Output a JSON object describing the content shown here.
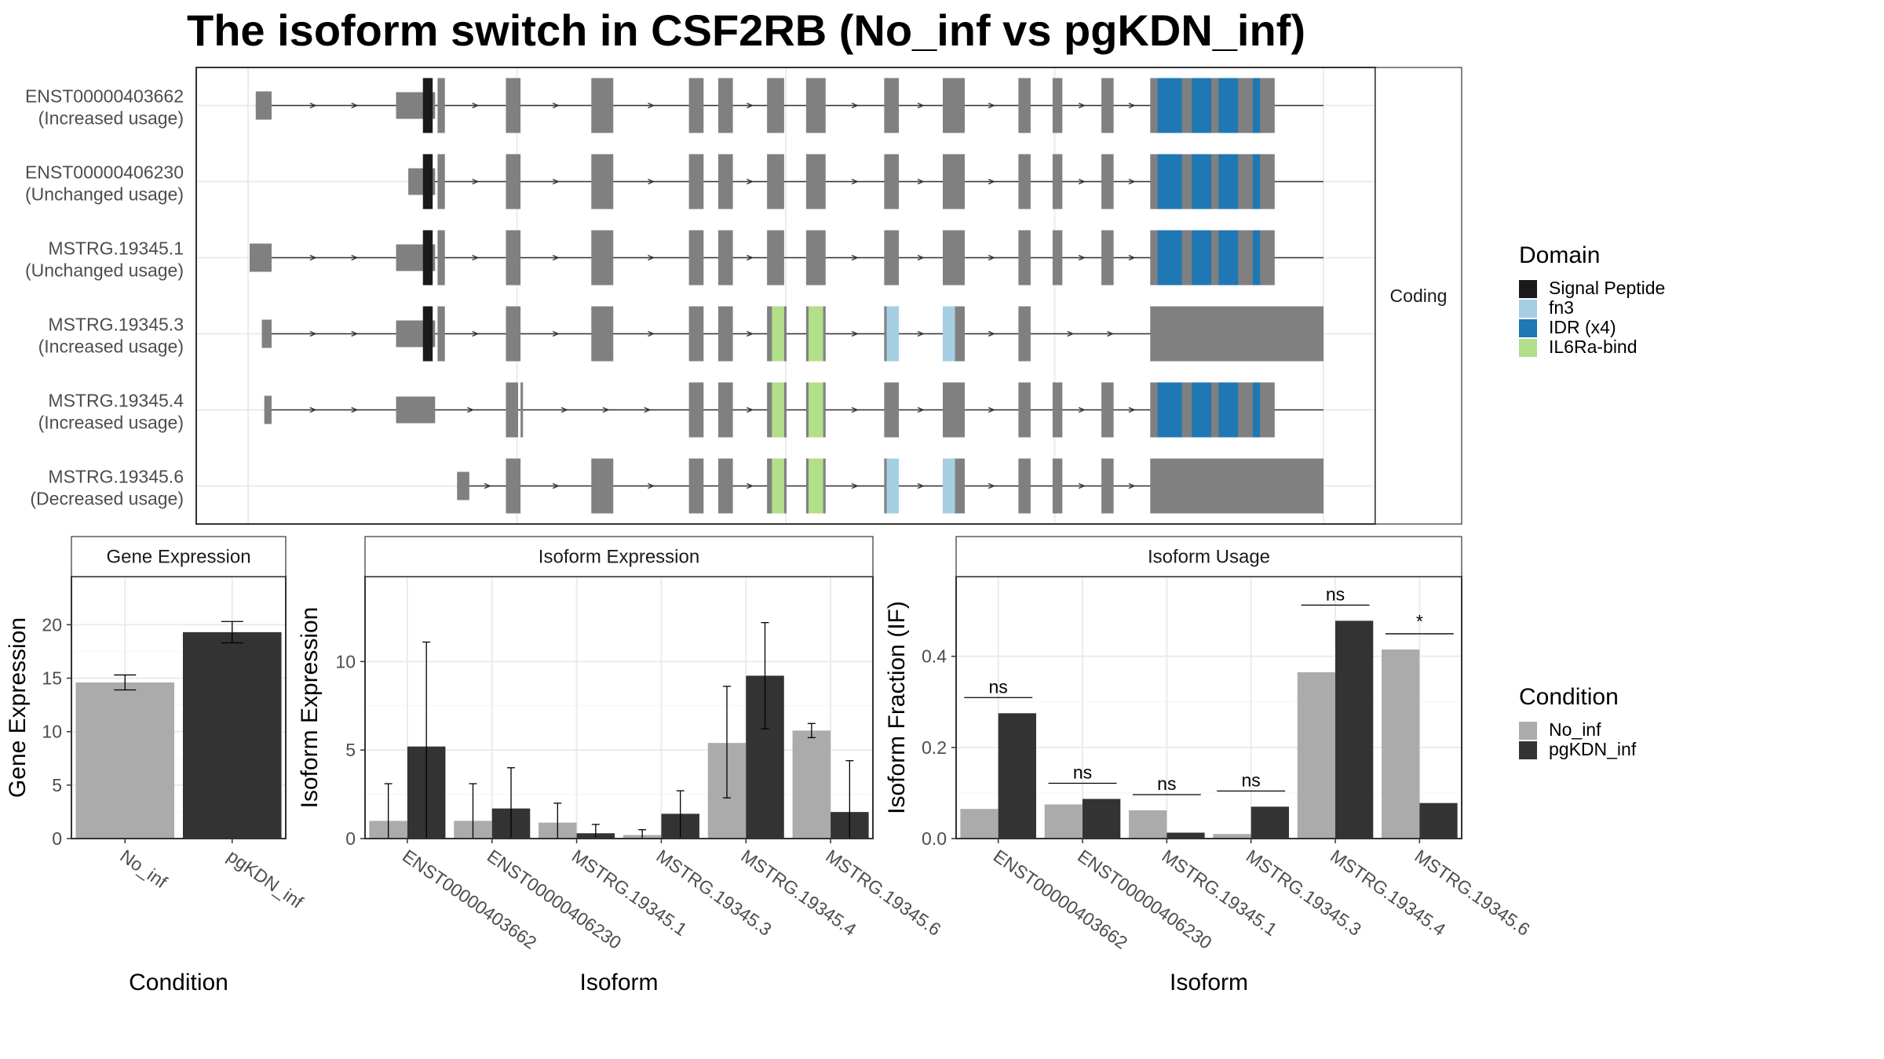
{
  "title": "The isoform switch in CSF2RB (No_inf vs pgKDN_inf)",
  "colors": {
    "exon": "#808080",
    "signal_peptide": "#1a1a1a",
    "fn3": "#a6cee3",
    "idr": "#1f78b4",
    "il6ra_bind": "#b2df8a",
    "no_inf": "#ababab",
    "pgkdn_inf": "#333333",
    "grid": "#ebebeb",
    "border": "#333333",
    "strip_border": "#333333"
  },
  "structure": {
    "strip_label": "Coding",
    "isoforms": [
      {
        "id": "ENST00000403662",
        "usage": "(Increased usage)",
        "start": 5,
        "end": 880,
        "exons": [
          [
            5,
            18
          ],
          [
            120,
            152
          ],
          [
            154,
            160
          ],
          [
            210,
            222
          ],
          [
            280,
            298
          ],
          [
            360,
            372
          ],
          [
            384,
            396
          ],
          [
            424,
            438
          ],
          [
            456,
            472
          ],
          [
            520,
            532
          ],
          [
            568,
            586
          ],
          [
            630,
            640
          ],
          [
            658,
            666
          ],
          [
            698,
            708
          ],
          [
            738,
            840
          ]
        ],
        "domains": [
          {
            "type": "signal_peptide",
            "s": 142,
            "e": 150
          },
          {
            "type": "idr",
            "s": 744,
            "e": 764
          },
          {
            "type": "idr",
            "s": 772,
            "e": 788
          },
          {
            "type": "idr",
            "s": 794,
            "e": 810
          },
          {
            "type": "idr",
            "s": 822,
            "e": 828
          }
        ]
      },
      {
        "id": "ENST00000406230",
        "usage": "(Unchanged usage)",
        "start": 130,
        "end": 880,
        "exons": [
          [
            130,
            152
          ],
          [
            154,
            160
          ],
          [
            210,
            222
          ],
          [
            280,
            298
          ],
          [
            360,
            372
          ],
          [
            384,
            396
          ],
          [
            424,
            438
          ],
          [
            456,
            472
          ],
          [
            520,
            532
          ],
          [
            568,
            586
          ],
          [
            630,
            640
          ],
          [
            658,
            666
          ],
          [
            698,
            708
          ],
          [
            738,
            840
          ]
        ],
        "domains": [
          {
            "type": "signal_peptide",
            "s": 142,
            "e": 150
          },
          {
            "type": "idr",
            "s": 744,
            "e": 764
          },
          {
            "type": "idr",
            "s": 772,
            "e": 788
          },
          {
            "type": "idr",
            "s": 794,
            "e": 810
          },
          {
            "type": "idr",
            "s": 822,
            "e": 828
          }
        ]
      },
      {
        "id": "MSTRG.19345.1",
        "usage": "(Unchanged usage)",
        "start": 0,
        "end": 880,
        "exons": [
          [
            0,
            18
          ],
          [
            120,
            152
          ],
          [
            154,
            160
          ],
          [
            210,
            222
          ],
          [
            280,
            298
          ],
          [
            360,
            372
          ],
          [
            384,
            396
          ],
          [
            424,
            438
          ],
          [
            456,
            472
          ],
          [
            520,
            532
          ],
          [
            568,
            586
          ],
          [
            630,
            640
          ],
          [
            658,
            666
          ],
          [
            698,
            708
          ],
          [
            738,
            840
          ]
        ],
        "domains": [
          {
            "type": "signal_peptide",
            "s": 142,
            "e": 150
          },
          {
            "type": "idr",
            "s": 744,
            "e": 764
          },
          {
            "type": "idr",
            "s": 772,
            "e": 788
          },
          {
            "type": "idr",
            "s": 794,
            "e": 810
          },
          {
            "type": "idr",
            "s": 822,
            "e": 828
          }
        ]
      },
      {
        "id": "MSTRG.19345.3",
        "usage": "(Increased usage)",
        "start": 10,
        "end": 880,
        "exons": [
          [
            10,
            18
          ],
          [
            120,
            152
          ],
          [
            154,
            160
          ],
          [
            210,
            222
          ],
          [
            280,
            298
          ],
          [
            360,
            372
          ],
          [
            384,
            396
          ],
          [
            424,
            440
          ],
          [
            456,
            472
          ],
          [
            520,
            532
          ],
          [
            568,
            586
          ],
          [
            630,
            640
          ],
          [
            738,
            880
          ]
        ],
        "domains": [
          {
            "type": "signal_peptide",
            "s": 142,
            "e": 150
          },
          {
            "type": "il6ra_bind",
            "s": 428,
            "e": 438
          },
          {
            "type": "il6ra_bind",
            "s": 458,
            "e": 470
          },
          {
            "type": "fn3",
            "s": 522,
            "e": 532
          },
          {
            "type": "fn3",
            "s": 568,
            "e": 578
          }
        ]
      },
      {
        "id": "MSTRG.19345.4",
        "usage": "(Increased usage)",
        "start": 12,
        "end": 880,
        "exons": [
          [
            12,
            18
          ],
          [
            120,
            152
          ],
          [
            210,
            220
          ],
          [
            222,
            224
          ],
          [
            360,
            372
          ],
          [
            384,
            396
          ],
          [
            424,
            440
          ],
          [
            456,
            472
          ],
          [
            520,
            532
          ],
          [
            568,
            586
          ],
          [
            630,
            640
          ],
          [
            658,
            666
          ],
          [
            698,
            708
          ],
          [
            738,
            840
          ]
        ],
        "domains": [
          {
            "type": "il6ra_bind",
            "s": 428,
            "e": 438
          },
          {
            "type": "il6ra_bind",
            "s": 458,
            "e": 470
          },
          {
            "type": "idr",
            "s": 744,
            "e": 764
          },
          {
            "type": "idr",
            "s": 772,
            "e": 788
          },
          {
            "type": "idr",
            "s": 794,
            "e": 810
          },
          {
            "type": "idr",
            "s": 822,
            "e": 828
          }
        ]
      },
      {
        "id": "MSTRG.19345.6",
        "usage": "(Decreased usage)",
        "start": 170,
        "end": 880,
        "exons": [
          [
            170,
            180
          ],
          [
            210,
            222
          ],
          [
            280,
            286
          ],
          [
            286,
            298
          ],
          [
            360,
            372
          ],
          [
            384,
            396
          ],
          [
            424,
            440
          ],
          [
            456,
            472
          ],
          [
            520,
            532
          ],
          [
            568,
            586
          ],
          [
            630,
            640
          ],
          [
            658,
            666
          ],
          [
            698,
            708
          ],
          [
            738,
            880
          ]
        ],
        "domains": [
          {
            "type": "il6ra_bind",
            "s": 428,
            "e": 438
          },
          {
            "type": "il6ra_bind",
            "s": 458,
            "e": 470
          },
          {
            "type": "fn3",
            "s": 522,
            "e": 532
          },
          {
            "type": "fn3",
            "s": 568,
            "e": 578
          }
        ]
      }
    ]
  },
  "legend_domain": {
    "title": "Domain",
    "items": [
      {
        "label": "Signal Peptide",
        "color_key": "signal_peptide"
      },
      {
        "label": "fn3",
        "color_key": "fn3"
      },
      {
        "label": "IDR (x4)",
        "color_key": "idr"
      },
      {
        "label": "IL6Ra-bind",
        "color_key": "il6ra_bind"
      }
    ]
  },
  "legend_condition": {
    "title": "Condition",
    "items": [
      {
        "label": "No_inf",
        "color_key": "no_inf"
      },
      {
        "label": "pgKDN_inf",
        "color_key": "pgkdn_inf"
      }
    ]
  },
  "chart_data": [
    {
      "type": "bar",
      "title": "Gene Expression",
      "xlabel": "Condition",
      "ylabel": "Gene Expression",
      "categories": [
        "No_inf",
        "pgKDN_inf"
      ],
      "values": [
        14.6,
        19.3
      ],
      "errors": [
        [
          13.9,
          15.3
        ],
        [
          18.3,
          20.3
        ]
      ],
      "ylim": [
        0,
        24.5
      ],
      "yticks": [
        0,
        5,
        10,
        15,
        20
      ]
    },
    {
      "type": "bar",
      "title": "Isoform Expression",
      "xlabel": "Isoform",
      "ylabel": "Isoform Expression",
      "categories": [
        "ENST00000403662",
        "ENST00000406230",
        "MSTRG.19345.1",
        "MSTRG.19345.3",
        "MSTRG.19345.4",
        "MSTRG.19345.6"
      ],
      "series": [
        {
          "name": "No_inf",
          "values": [
            1.0,
            1.0,
            0.9,
            0.2,
            5.4,
            6.1
          ],
          "errors": [
            [
              0,
              3.1
            ],
            [
              0,
              3.1
            ],
            [
              0,
              2.0
            ],
            [
              0,
              0.5
            ],
            [
              2.3,
              8.6
            ],
            [
              5.7,
              6.5
            ]
          ]
        },
        {
          "name": "pgKDN_inf",
          "values": [
            5.2,
            1.7,
            0.3,
            1.4,
            9.2,
            1.5
          ],
          "errors": [
            [
              0,
              11.1
            ],
            [
              0,
              4.0
            ],
            [
              0,
              0.8
            ],
            [
              0,
              2.7
            ],
            [
              6.2,
              12.2
            ],
            [
              0,
              4.4
            ]
          ]
        }
      ],
      "ylim": [
        0,
        14.8
      ],
      "yticks": [
        0,
        5,
        10
      ]
    },
    {
      "type": "bar",
      "title": "Isoform Usage",
      "xlabel": "Isoform",
      "ylabel": "Isoform Fraction (IF)",
      "categories": [
        "ENST00000403662",
        "ENST00000406230",
        "MSTRG.19345.1",
        "MSTRG.19345.3",
        "MSTRG.19345.4",
        "MSTRG.19345.6"
      ],
      "series": [
        {
          "name": "No_inf",
          "values": [
            0.065,
            0.075,
            0.062,
            0.01,
            0.365,
            0.415
          ]
        },
        {
          "name": "pgKDN_inf",
          "values": [
            0.275,
            0.087,
            0.013,
            0.07,
            0.478,
            0.078
          ]
        }
      ],
      "significance": [
        "ns",
        "ns",
        "ns",
        "ns",
        "ns",
        "*"
      ],
      "ylim": [
        0,
        0.575
      ],
      "yticks": [
        0.0,
        0.2,
        0.4
      ],
      "ytick_labels": [
        "0.0",
        "0.2",
        "0.4"
      ]
    }
  ]
}
